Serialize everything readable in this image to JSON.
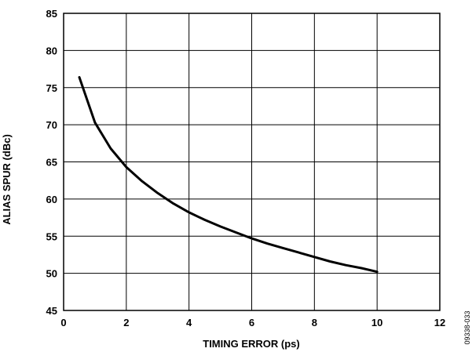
{
  "chart_data": {
    "type": "line",
    "title": "",
    "xlabel": "TIMING ERROR (ps)",
    "ylabel": "ALIAS SPUR (dBc)",
    "xlim": [
      0,
      12
    ],
    "ylim": [
      45,
      85
    ],
    "xticks": [
      0,
      2,
      4,
      6,
      8,
      10,
      12
    ],
    "yticks": [
      45,
      50,
      55,
      60,
      65,
      70,
      75,
      80,
      85
    ],
    "grid": true,
    "legend": "none",
    "line_color": "#000000",
    "series": [
      {
        "x": [
          0.5,
          1.0,
          1.5,
          2.0,
          2.5,
          3.0,
          3.5,
          4.0,
          4.5,
          5.0,
          5.5,
          6.0,
          6.5,
          7.0,
          7.5,
          8.0,
          8.5,
          9.0,
          9.5,
          10.0
        ],
        "values": [
          76.4,
          70.3,
          66.8,
          64.3,
          62.4,
          60.8,
          59.4,
          58.2,
          57.2,
          56.3,
          55.5,
          54.7,
          54.0,
          53.4,
          52.8,
          52.2,
          51.6,
          51.1,
          50.7,
          50.2
        ]
      }
    ]
  },
  "figure_code": "09338-033"
}
